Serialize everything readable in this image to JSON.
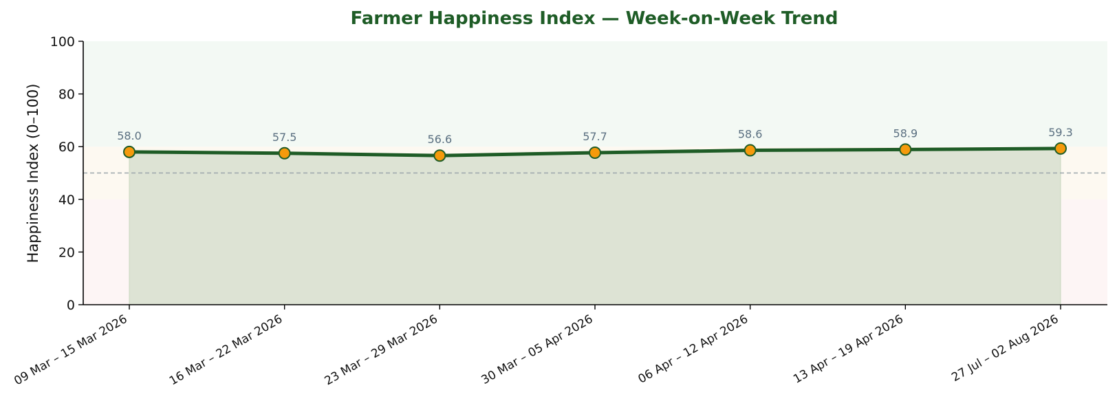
{
  "chart_data": {
    "type": "line",
    "title": "Farmer Happiness Index — Week-on-Week Trend",
    "xlabel": "",
    "ylabel": "Happiness Index (0–100)",
    "ylim": [
      0,
      100
    ],
    "yticks": [
      0,
      20,
      40,
      60,
      80,
      100
    ],
    "categories": [
      "09 Mar – 15 Mar 2026",
      "16 Mar – 22 Mar 2026",
      "23 Mar – 29 Mar 2026",
      "30 Mar – 05 Apr 2026",
      "06 Apr – 12 Apr 2026",
      "13 Apr – 19 Apr 2026",
      "27 Jul – 02 Aug 2026"
    ],
    "values": [
      58.0,
      57.5,
      56.6,
      57.7,
      58.6,
      58.9,
      59.3
    ],
    "data_labels": [
      "58.0",
      "57.5",
      "56.6",
      "57.7",
      "58.6",
      "58.9",
      "59.3"
    ],
    "reference_line": 50,
    "bands": [
      {
        "from": 0,
        "to": 40,
        "color": "#fdf5f5"
      },
      {
        "from": 40,
        "to": 60,
        "color": "#fdf9f1"
      },
      {
        "from": 60,
        "to": 100,
        "color": "#f3f9f4"
      }
    ],
    "grid": false,
    "colors": {
      "title": "#1e5c26",
      "line": "#1e5c26",
      "marker_fill": "#f59a0c",
      "marker_stroke": "#1e5c26",
      "area_fill": "#dde3d4",
      "reference_line": "#9aa4a9",
      "data_label": "#5a6f80"
    }
  }
}
